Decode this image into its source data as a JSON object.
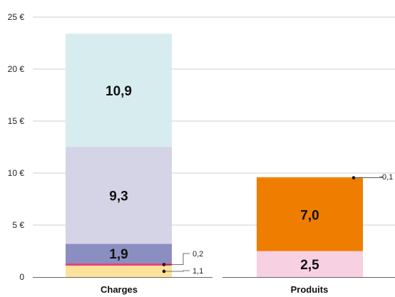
{
  "chart_data": {
    "type": "bar",
    "stacked": true,
    "title": "",
    "xlabel": "",
    "ylabel": "",
    "ylim": [
      0,
      25
    ],
    "yticks": [
      0,
      5,
      10,
      15,
      20,
      25
    ],
    "ytick_labels": [
      "0",
      "5 €",
      "10 €",
      "15 €",
      "20 €",
      "25 €"
    ],
    "grid": true,
    "legend": "none",
    "categories": [
      "Charges",
      "Produits"
    ],
    "bars": [
      {
        "category": "Charges",
        "segments": [
          {
            "value": 1.1,
            "label": "1,1",
            "color": "#fce29b",
            "callout": true
          },
          {
            "value": 0.2,
            "label": "0,2",
            "color": "#e8407a",
            "callout": true
          },
          {
            "value": 1.9,
            "label": "1,9",
            "color": "#8b8ec0",
            "callout": false
          },
          {
            "value": 9.3,
            "label": "9,3",
            "color": "#d5d3e6",
            "callout": false
          },
          {
            "value": 10.9,
            "label": "10,9",
            "color": "#d7ecef",
            "callout": false
          }
        ]
      },
      {
        "category": "Produits",
        "segments": [
          {
            "value": 2.5,
            "label": "2,5",
            "color": "#f7d0e2",
            "callout": false
          },
          {
            "value": 7.0,
            "label": "7,0",
            "color": "#ee7d00",
            "callout": false
          },
          {
            "value": 0.1,
            "label": "0,1",
            "color": "#ee7d00",
            "callout": true
          }
        ]
      }
    ]
  }
}
